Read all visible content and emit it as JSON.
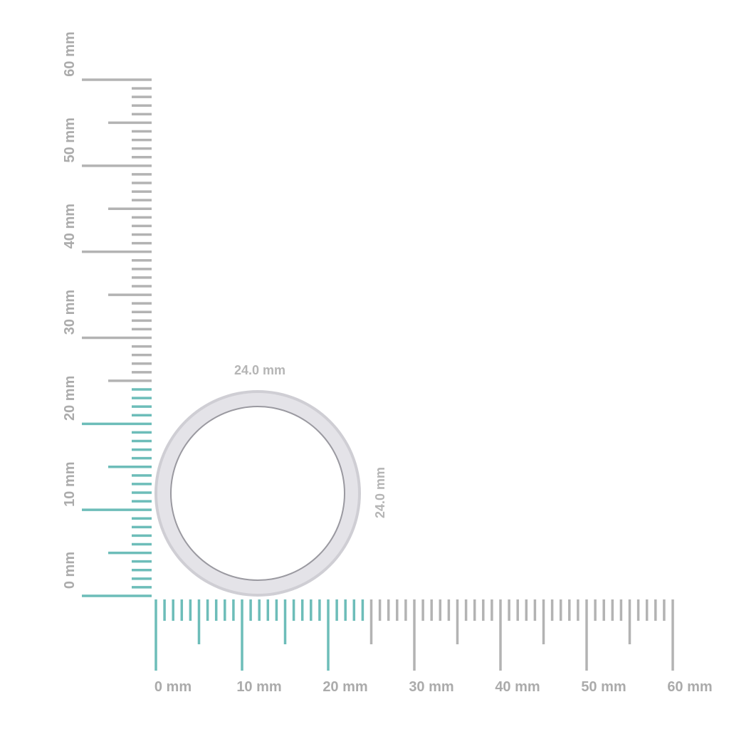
{
  "ruler": {
    "unit": "mm",
    "min": 0,
    "max": 60,
    "label_step": 10,
    "highlight_max": 24,
    "highlight_color": "#6dbdb9",
    "base_color": "#b3b3b3",
    "horizontal_labels": [
      "0 mm",
      "10 mm",
      "20 mm",
      "30 mm",
      "40 mm",
      "50 mm",
      "60 mm"
    ],
    "vertical_labels": [
      "0 mm",
      "10 mm",
      "20 mm",
      "30 mm",
      "40 mm",
      "50 mm",
      "60 mm"
    ]
  },
  "ring": {
    "width_label": "24.0 mm",
    "height_label": "24.0 mm",
    "outer_diameter_mm": 24.0,
    "metal_color": "#e4e3e8"
  }
}
